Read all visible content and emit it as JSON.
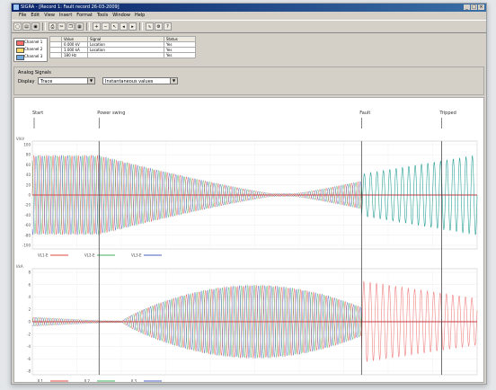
{
  "app": {
    "title": "SIGRA - [Record 1: Fault record 26-03-2009]",
    "menu": [
      "File",
      "Edit",
      "View",
      "Insert",
      "Format",
      "Tools",
      "Window",
      "Help"
    ]
  },
  "toolbar": {
    "buttons": [
      "New",
      "Open",
      "Save",
      "Print",
      "Cut",
      "Copy",
      "Paste",
      "Zoom",
      "Cursor",
      "Phasor",
      "Settings",
      "Info"
    ]
  },
  "channel_legend": [
    {
      "label": "Channel 1",
      "color": "#ff6a6a"
    },
    {
      "label": "Channel 2",
      "color": "#ffd966"
    },
    {
      "label": "Channel 3",
      "color": "#6fa8dc"
    }
  ],
  "channel_table": {
    "headers": [
      "",
      "Value",
      "Signal",
      "Status"
    ],
    "rows": [
      [
        "",
        "0.000 kV",
        "Location",
        "Yes"
      ],
      [
        "",
        "1.000 kA",
        "Location",
        "Yes"
      ],
      [
        "",
        "180 Hz",
        "",
        "Yes"
      ]
    ]
  },
  "analysis": {
    "title": "Analog Signals",
    "row_label": "Display",
    "mode_value": "Trace",
    "view_value": "Instantaneous values"
  },
  "events": [
    {
      "label": "Start",
      "t": 0.0
    },
    {
      "label": "Power swing",
      "t": 0.15
    },
    {
      "label": "Fault",
      "t": 0.74
    },
    {
      "label": "Tripped",
      "t": 0.92
    }
  ],
  "colors": {
    "phase_a": "#e0453a",
    "phase_b": "#3fae5a",
    "phase_c": "#4a5fc1",
    "zero": "#cc2222",
    "teal": "#2aa198"
  },
  "plot1": {
    "y_unit": "V/kV",
    "ticks": [
      "100",
      "80",
      "60",
      "40",
      "20",
      "0",
      "-20",
      "-40",
      "-60",
      "-80",
      "-100"
    ],
    "legend": [
      "VL1-E",
      "VL2-E",
      "VL3-E"
    ]
  },
  "plot2": {
    "y_unit": "I/kA",
    "ticks": [
      "8",
      "6",
      "4",
      "2",
      "0",
      "-2",
      "-4",
      "-6",
      "-8"
    ],
    "legend": [
      "IL1",
      "IL2",
      "IL3"
    ]
  }
}
